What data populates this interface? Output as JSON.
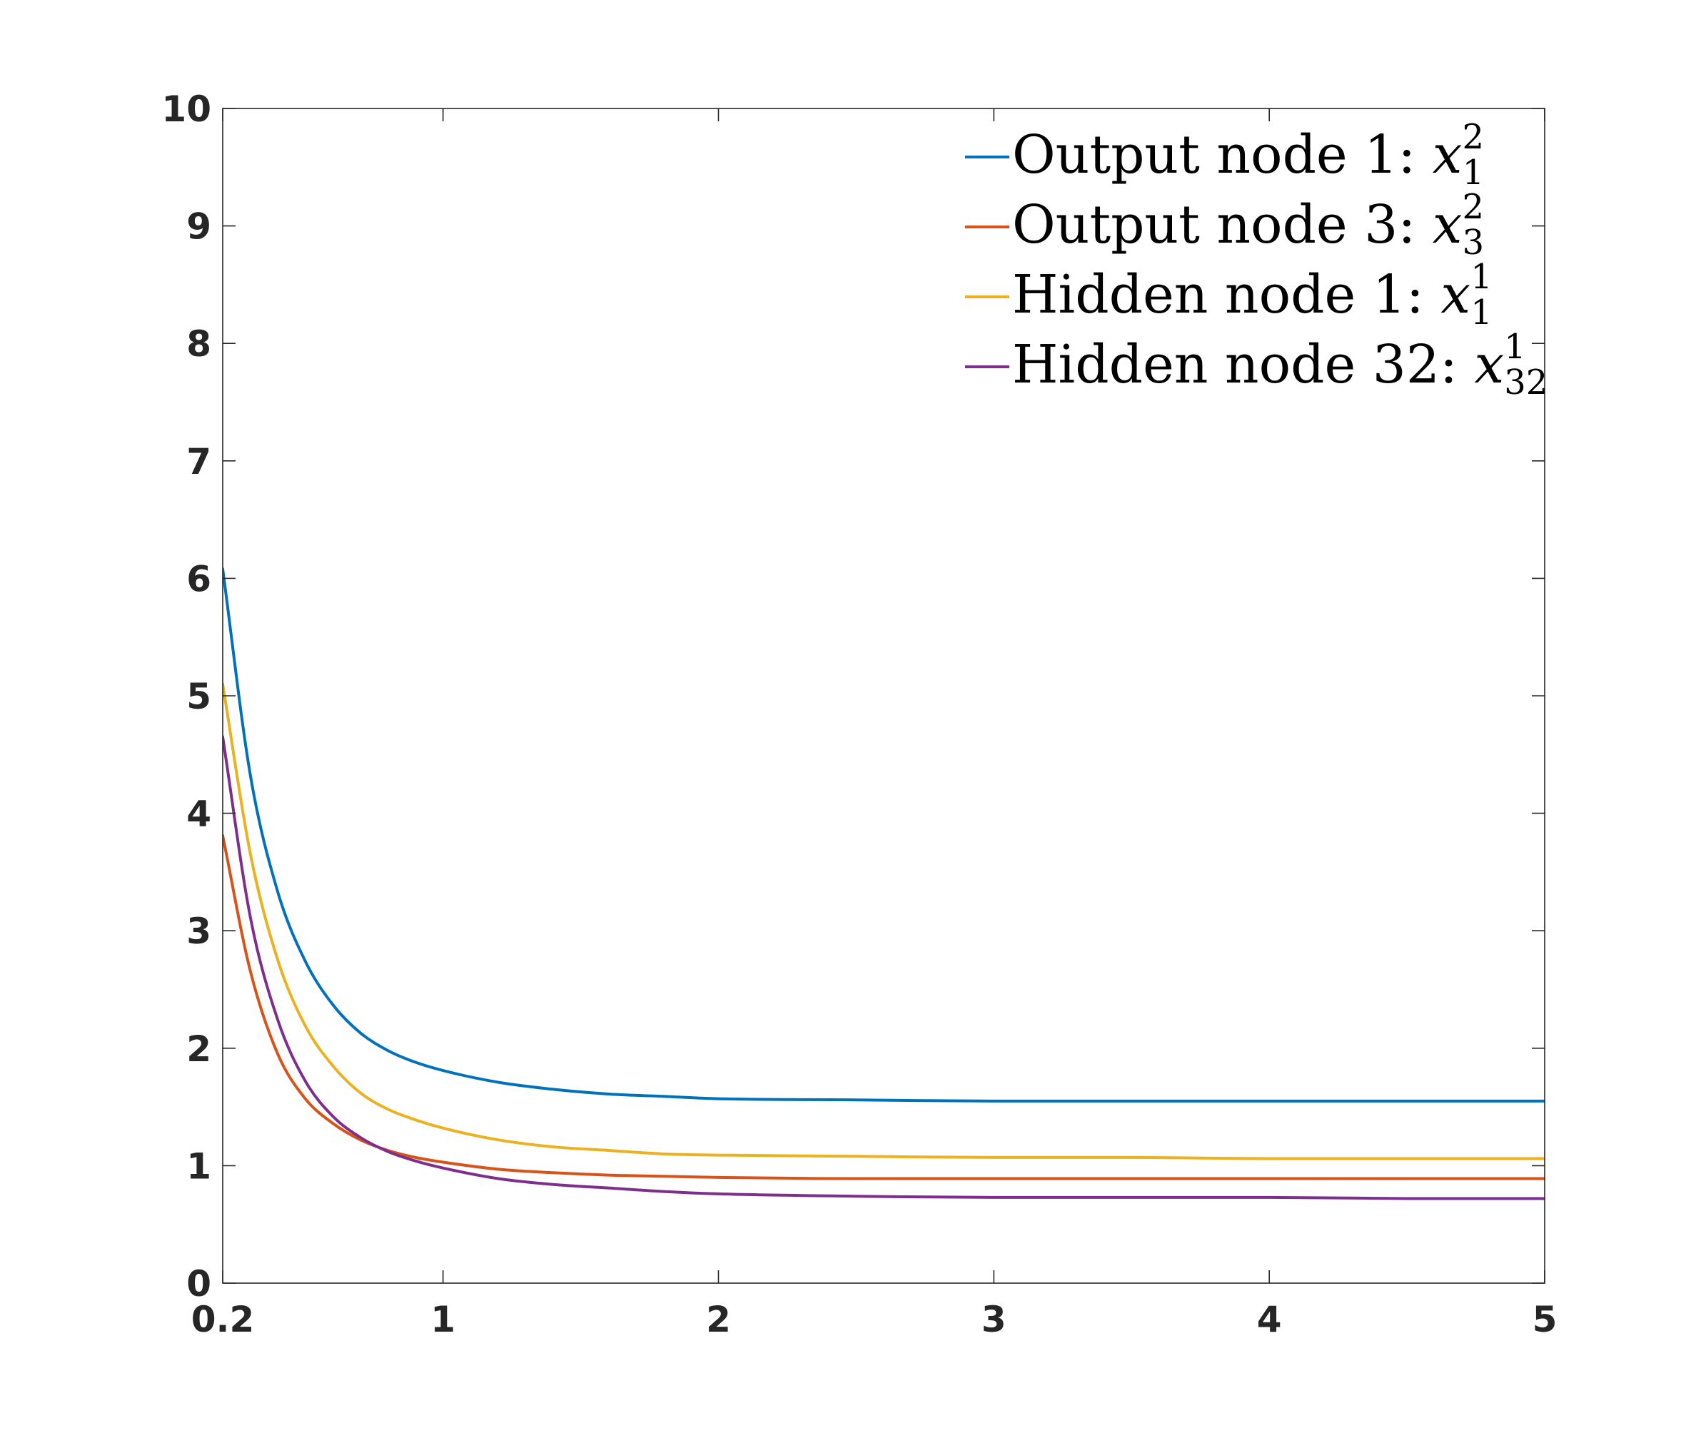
{
  "chart_data": {
    "type": "line",
    "title": "",
    "xlabel": "",
    "ylabel": "",
    "xlim": [
      0.2,
      5
    ],
    "ylim": [
      0,
      10
    ],
    "xticks": [
      0.2,
      1,
      2,
      3,
      4,
      5
    ],
    "xtick_labels": [
      "0.2",
      "1",
      "2",
      "3",
      "4",
      "5"
    ],
    "yticks": [
      0,
      1,
      2,
      3,
      4,
      5,
      6,
      7,
      8,
      9,
      10
    ],
    "ytick_labels": [
      "0",
      "1",
      "2",
      "3",
      "4",
      "5",
      "6",
      "7",
      "8",
      "9",
      "10"
    ],
    "grid": false,
    "legend_position": "top-right",
    "x": [
      0.2,
      0.3,
      0.4,
      0.5,
      0.6,
      0.7,
      0.8,
      0.9,
      1.0,
      1.2,
      1.4,
      1.6,
      1.8,
      2.0,
      2.5,
      3.0,
      3.5,
      4.0,
      4.5,
      5.0
    ],
    "series": [
      {
        "name": "Output node 1: ",
        "math_base": "x",
        "math_sub": "1",
        "math_sup": "2",
        "color": "#0072BD",
        "values": [
          6.08,
          4.33,
          3.33,
          2.74,
          2.37,
          2.13,
          1.98,
          1.88,
          1.81,
          1.71,
          1.65,
          1.61,
          1.59,
          1.57,
          1.56,
          1.55,
          1.55,
          1.55,
          1.55,
          1.55
        ]
      },
      {
        "name": "Output node 3: ",
        "math_base": "x",
        "math_sub": "3",
        "math_sup": "2",
        "color": "#D95319",
        "values": [
          3.81,
          2.66,
          1.95,
          1.57,
          1.36,
          1.22,
          1.13,
          1.07,
          1.03,
          0.97,
          0.94,
          0.92,
          0.91,
          0.9,
          0.89,
          0.89,
          0.89,
          0.89,
          0.89,
          0.89
        ]
      },
      {
        "name": "Hidden node 1: ",
        "math_base": "x",
        "math_sub": "1",
        "math_sup": "1",
        "color": "#EDB120",
        "values": [
          5.1,
          3.66,
          2.75,
          2.19,
          1.85,
          1.62,
          1.48,
          1.39,
          1.32,
          1.22,
          1.16,
          1.13,
          1.1,
          1.09,
          1.08,
          1.07,
          1.07,
          1.06,
          1.06,
          1.06
        ]
      },
      {
        "name": "Hidden node 32: ",
        "math_base": "x",
        "math_sub": "32",
        "math_sup": "1",
        "color": "#7E2F8E",
        "values": [
          4.65,
          3.12,
          2.24,
          1.72,
          1.42,
          1.24,
          1.12,
          1.04,
          0.98,
          0.89,
          0.84,
          0.81,
          0.78,
          0.76,
          0.74,
          0.73,
          0.73,
          0.73,
          0.72,
          0.72
        ]
      }
    ]
  }
}
